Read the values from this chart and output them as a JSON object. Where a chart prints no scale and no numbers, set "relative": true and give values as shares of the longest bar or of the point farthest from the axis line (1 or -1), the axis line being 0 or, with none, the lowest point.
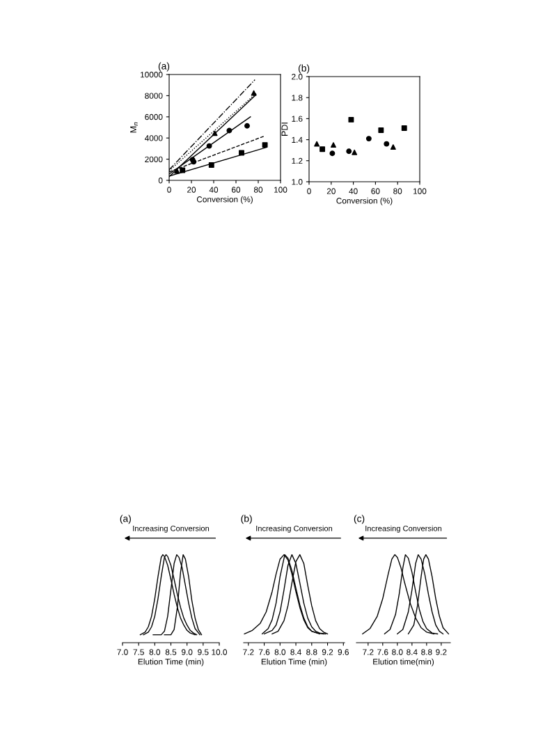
{
  "chart_data": [
    {
      "type": "scatter",
      "title": "(a)",
      "xlabel": "Conversion (%)",
      "ylabel": "M$_{n}$",
      "xlim": [
        0,
        100
      ],
      "xticks": [
        0,
        20,
        40,
        60,
        80,
        100
      ],
      "ylim": [
        0,
        10000
      ],
      "yticks": [
        0,
        2000,
        4000,
        6000,
        8000,
        10000
      ],
      "series": [
        {
          "type": "scatter",
          "marker": "square",
          "color": "#000000",
          "x": [
            12,
            38,
            65,
            86
          ],
          "values": [
            950,
            1450,
            2600,
            3350
          ]
        },
        {
          "type": "scatter",
          "marker": "circle",
          "color": "#000000",
          "x": [
            21,
            22,
            36,
            54,
            70
          ],
          "values": [
            1950,
            1750,
            3250,
            4700,
            5150
          ]
        },
        {
          "type": "scatter",
          "marker": "triangle",
          "color": "#000000",
          "x": [
            7,
            41,
            76
          ],
          "values": [
            900,
            4450,
            8250
          ]
        },
        {
          "type": "line",
          "line_style": "solid",
          "color": "#000000",
          "x": [
            0,
            87
          ],
          "values": [
            400,
            3100
          ]
        },
        {
          "type": "line",
          "line_style": "solid",
          "color": "#000000",
          "x": [
            0,
            73
          ],
          "values": [
            600,
            6000
          ]
        },
        {
          "type": "line",
          "line_style": "solid",
          "color": "#000000",
          "x": [
            0,
            78
          ],
          "values": [
            350,
            8100
          ]
        },
        {
          "type": "line",
          "line_style": "dashed",
          "color": "#000000",
          "x": [
            0,
            86
          ],
          "values": [
            800,
            4200
          ]
        },
        {
          "type": "line",
          "line_style": "dotted",
          "color": "#000000",
          "x": [
            0,
            79
          ],
          "values": [
            900,
            8300
          ]
        },
        {
          "type": "line",
          "line_style": "dashdot",
          "color": "#000000",
          "x": [
            0,
            77
          ],
          "values": [
            1000,
            9500
          ]
        }
      ]
    },
    {
      "type": "scatter",
      "title": "(b)",
      "xlabel": "Conversion (%)",
      "ylabel": "PDI",
      "xlim": [
        0,
        100
      ],
      "xticks": [
        0,
        20,
        40,
        60,
        80,
        100
      ],
      "ylim": [
        1.0,
        2.0
      ],
      "yticks": [
        {
          "value": 1.0,
          "label": "1.0"
        },
        1.2,
        1.4,
        1.6,
        1.8,
        {
          "value": 2.0,
          "label": "2.0"
        }
      ],
      "series": [
        {
          "type": "scatter",
          "marker": "square",
          "color": "#000000",
          "x": [
            12,
            38,
            65,
            86
          ],
          "values": [
            1.31,
            1.59,
            1.49,
            1.51
          ]
        },
        {
          "type": "scatter",
          "marker": "circle",
          "color": "#000000",
          "x": [
            21,
            36,
            54,
            70
          ],
          "values": [
            1.27,
            1.29,
            1.41,
            1.36
          ]
        },
        {
          "type": "scatter",
          "marker": "triangle",
          "color": "#000000",
          "x": [
            7,
            22,
            41,
            76
          ],
          "values": [
            1.36,
            1.35,
            1.28,
            1.33
          ]
        }
      ]
    },
    {
      "type": "line",
      "relative": true,
      "title": "(a)",
      "xlabel": "Elution Time (min)",
      "tick_labels": "x",
      "annotations": [
        "Increasing Conversion"
      ],
      "xlim": [
        7.0,
        10.0
      ],
      "xticks": [
        {
          "value": 7.0,
          "label": "7.0"
        },
        7.5,
        {
          "value": 8.0,
          "label": "8.0"
        },
        8.5,
        {
          "value": 9.0,
          "label": "9.0"
        },
        9.5,
        {
          "value": 10.0,
          "label": "10.0"
        }
      ],
      "series": [
        {
          "color": "#000000",
          "x": [
            7.55,
            7.7,
            7.8,
            7.9,
            8.0,
            8.1,
            8.2,
            8.25,
            8.3,
            8.4,
            8.5,
            8.6,
            8.7,
            8.8,
            8.9,
            9.0,
            9.1,
            9.25
          ],
          "values": [
            0.09,
            0.12,
            0.18,
            0.3,
            0.5,
            0.75,
            0.97,
            1.0,
            0.98,
            0.88,
            0.72,
            0.55,
            0.4,
            0.28,
            0.2,
            0.14,
            0.11,
            0.09
          ]
        },
        {
          "color": "#000000",
          "x": [
            7.65,
            7.8,
            7.9,
            8.0,
            8.1,
            8.2,
            8.3,
            8.35,
            8.4,
            8.5,
            8.6,
            8.7,
            8.8,
            8.9,
            9.0,
            9.1,
            9.2,
            9.3
          ],
          "values": [
            0.09,
            0.12,
            0.18,
            0.3,
            0.5,
            0.75,
            0.97,
            1.0,
            0.98,
            0.88,
            0.72,
            0.55,
            0.4,
            0.28,
            0.2,
            0.14,
            0.11,
            0.09
          ]
        },
        {
          "color": "#000000",
          "x": [
            7.95,
            8.2,
            8.3,
            8.4,
            8.5,
            8.6,
            8.68,
            8.75,
            8.85,
            8.95,
            9.05,
            9.15,
            9.25,
            9.4
          ],
          "values": [
            0.09,
            0.09,
            0.13,
            0.3,
            0.6,
            0.9,
            1.0,
            0.97,
            0.85,
            0.65,
            0.45,
            0.28,
            0.16,
            0.09
          ]
        },
        {
          "color": "#000000",
          "x": [
            8.3,
            8.5,
            8.6,
            8.7,
            8.8,
            8.88,
            8.95,
            9.05,
            9.15,
            9.25,
            9.35,
            9.45
          ],
          "values": [
            0.09,
            0.09,
            0.15,
            0.4,
            0.8,
            1.0,
            0.95,
            0.75,
            0.48,
            0.28,
            0.15,
            0.09
          ]
        }
      ]
    },
    {
      "type": "line",
      "relative": true,
      "title": "(b)",
      "xlabel": "Elution Time (min)",
      "tick_labels": "x",
      "annotations": [
        "Increasing Conversion"
      ],
      "xlim": [
        7.08,
        9.63
      ],
      "xticks": [
        7.2,
        7.6,
        {
          "value": 8.0,
          "label": "8.0"
        },
        8.4,
        8.8,
        9.2,
        9.6
      ],
      "series": [
        {
          "color": "#000000",
          "x": [
            7.1,
            7.3,
            7.5,
            7.65,
            7.8,
            7.9,
            8.0,
            8.1,
            8.2,
            8.3,
            8.4,
            8.5,
            8.6,
            8.7,
            8.8,
            9.0
          ],
          "values": [
            0.1,
            0.14,
            0.22,
            0.35,
            0.58,
            0.78,
            0.95,
            1.0,
            0.94,
            0.78,
            0.58,
            0.4,
            0.26,
            0.17,
            0.13,
            0.1
          ]
        },
        {
          "color": "#000000",
          "x": [
            7.55,
            7.7,
            7.8,
            7.9,
            8.0,
            8.12,
            8.2,
            8.3,
            8.4,
            8.5,
            8.6,
            8.7,
            8.8,
            8.95,
            9.1
          ],
          "values": [
            0.1,
            0.16,
            0.26,
            0.45,
            0.75,
            1.0,
            0.96,
            0.82,
            0.62,
            0.43,
            0.28,
            0.18,
            0.13,
            0.11,
            0.1
          ]
        },
        {
          "color": "#000000",
          "x": [
            7.6,
            7.8,
            7.9,
            8.0,
            8.1,
            8.2,
            8.3,
            8.4,
            8.5,
            8.6,
            8.7,
            8.8,
            8.9,
            9.0,
            9.15
          ],
          "values": [
            0.1,
            0.14,
            0.2,
            0.35,
            0.6,
            0.88,
            1.0,
            0.9,
            0.68,
            0.45,
            0.28,
            0.18,
            0.13,
            0.11,
            0.1
          ]
        },
        {
          "color": "#000000",
          "x": [
            7.8,
            7.95,
            8.1,
            8.2,
            8.3,
            8.4,
            8.5,
            8.6,
            8.7,
            8.8,
            8.9,
            9.0,
            9.1,
            9.2
          ],
          "values": [
            0.1,
            0.13,
            0.25,
            0.42,
            0.68,
            0.92,
            1.0,
            0.9,
            0.65,
            0.42,
            0.25,
            0.16,
            0.12,
            0.1
          ]
        }
      ]
    },
    {
      "type": "line",
      "relative": true,
      "title": "(c)",
      "xlabel": "Elution time(min)",
      "tick_labels": "x",
      "annotations": [
        "Increasing Conversion"
      ],
      "xlim": [
        6.88,
        9.45
      ],
      "xticks": [
        7.2,
        7.6,
        {
          "value": 8.0,
          "label": "8.0"
        },
        8.4,
        8.8,
        9.2
      ],
      "series": [
        {
          "color": "#000000",
          "x": [
            7.05,
            7.25,
            7.45,
            7.6,
            7.75,
            7.85,
            7.93,
            8.0,
            8.1,
            8.2,
            8.35,
            8.5,
            8.65,
            8.8,
            9.0
          ],
          "values": [
            0.1,
            0.16,
            0.3,
            0.5,
            0.78,
            0.95,
            1.0,
            0.97,
            0.85,
            0.68,
            0.45,
            0.28,
            0.17,
            0.12,
            0.1
          ]
        },
        {
          "color": "#000000",
          "x": [
            7.65,
            7.8,
            7.95,
            8.05,
            8.15,
            8.22,
            8.3,
            8.4,
            8.5,
            8.6,
            8.7,
            8.8,
            8.95,
            9.1
          ],
          "values": [
            0.1,
            0.15,
            0.32,
            0.55,
            0.85,
            1.0,
            0.96,
            0.8,
            0.58,
            0.38,
            0.24,
            0.16,
            0.11,
            0.1
          ]
        },
        {
          "color": "#000000",
          "x": [
            8.0,
            8.15,
            8.3,
            8.4,
            8.5,
            8.57,
            8.65,
            8.75,
            8.85,
            8.95,
            9.05,
            9.15,
            9.25
          ],
          "values": [
            0.1,
            0.15,
            0.35,
            0.6,
            0.9,
            1.0,
            0.95,
            0.78,
            0.55,
            0.35,
            0.2,
            0.13,
            0.1
          ]
        },
        {
          "color": "#000000",
          "x": [
            8.3,
            8.45,
            8.55,
            8.65,
            8.72,
            8.78,
            8.85,
            8.95,
            9.05,
            9.15,
            9.25,
            9.4
          ],
          "values": [
            0.1,
            0.2,
            0.42,
            0.75,
            0.95,
            1.0,
            0.95,
            0.75,
            0.5,
            0.3,
            0.17,
            0.1
          ]
        }
      ]
    }
  ]
}
